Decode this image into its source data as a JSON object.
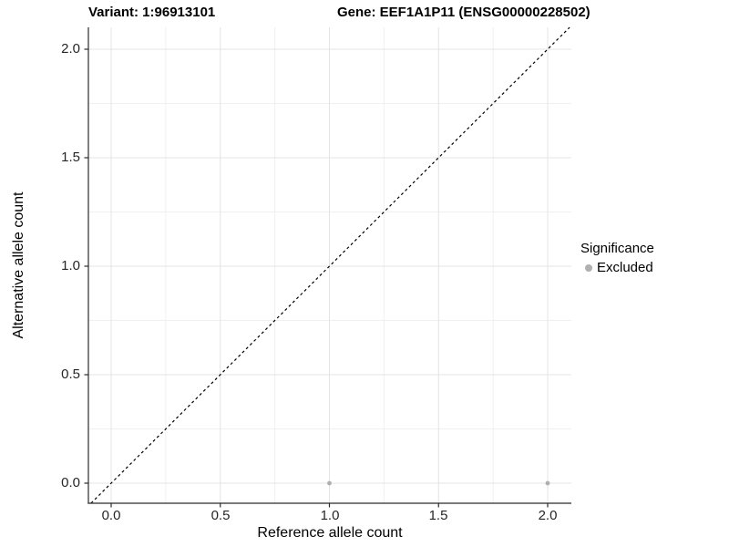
{
  "titles": {
    "variant": "Variant: 1:96913101",
    "gene": "Gene: EEF1A1P11 (ENSG00000228502)"
  },
  "chart_data": {
    "type": "scatter",
    "xlabel": "Reference allele count",
    "ylabel": "Alternative allele count",
    "xlim": [
      -0.1,
      2.1
    ],
    "ylim": [
      -0.09,
      2.1
    ],
    "x_ticks": [
      0.0,
      0.5,
      1.0,
      1.5,
      2.0
    ],
    "x_tick_labels": [
      "0.0",
      "0.5",
      "1.0",
      "1.5",
      "2.0"
    ],
    "y_ticks": [
      0.0,
      0.5,
      1.0,
      1.5,
      2.0
    ],
    "y_tick_labels": [
      "0.0",
      "0.5",
      "1.0",
      "1.5",
      "2.0"
    ],
    "minor_ticks": [
      0.25,
      0.75,
      1.25,
      1.75
    ],
    "grid": true,
    "series": [
      {
        "name": "Excluded",
        "color": "#b0b0b0",
        "points": [
          {
            "x": 1.0,
            "y": 0.0
          },
          {
            "x": 2.0,
            "y": 0.0
          }
        ]
      }
    ],
    "reference_line": {
      "slope": 1,
      "intercept": 0,
      "style": "dashed",
      "color": "#000000"
    },
    "legend": {
      "title": "Significance",
      "position": "right",
      "items": [
        {
          "label": "Excluded",
          "color": "#b0b0b0"
        }
      ]
    },
    "colors": {
      "grid_major": "#e4e4e4",
      "grid_minor": "#f0f0f0",
      "axis_line": "#2b2b2b"
    }
  }
}
